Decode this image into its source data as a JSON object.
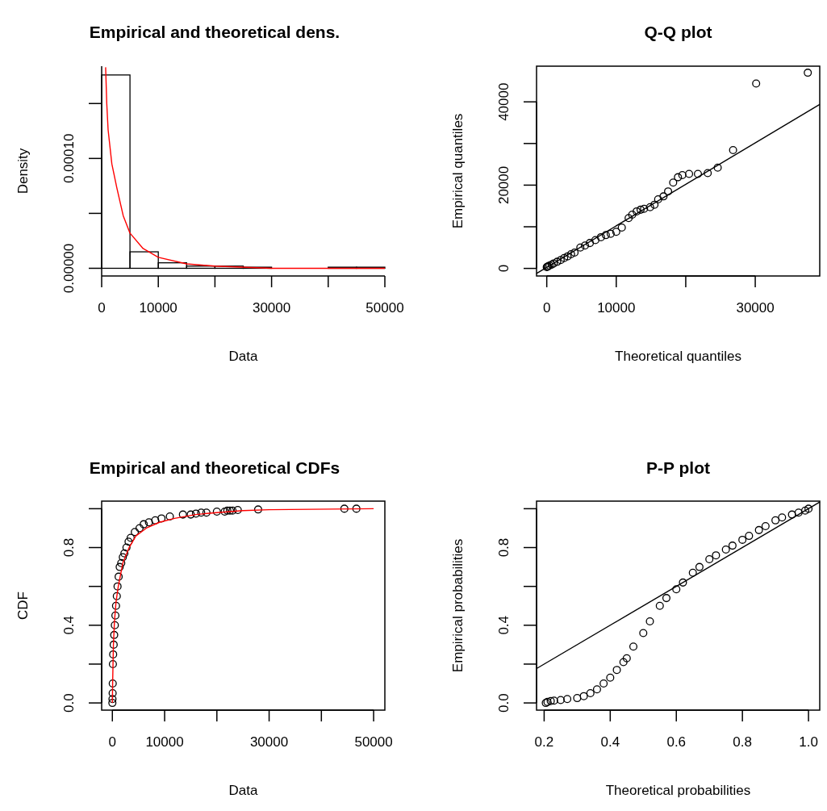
{
  "chart_data": [
    {
      "type": "histogram",
      "title": "Empirical and theoretical dens.",
      "xlabel": "Data",
      "ylabel": "Density",
      "xlim": [
        0,
        50000
      ],
      "ylim": [
        -7e-06,
        0.000184
      ],
      "xticks": [
        0,
        10000,
        {
          "value": 20000,
          "label": null
        },
        30000,
        {
          "value": 40000,
          "label": null
        },
        50000
      ],
      "yticks": [
        {
          "value": 0,
          "label": "0.00000"
        },
        {
          "value": 5e-05,
          "label": null
        },
        {
          "value": 0.0001,
          "label": "0.00010"
        },
        {
          "value": 0.00015,
          "label": null
        }
      ],
      "series": [
        {
          "type": "histogram",
          "color": "#000000",
          "bins": [
            0,
            5000,
            10000,
            15000,
            20000,
            25000,
            30000,
            35000,
            40000,
            45000,
            50000
          ],
          "values": [
            0.000176,
            1.5e-05,
            5e-06,
            2e-06,
            2e-06,
            1e-06,
            0,
            0,
            1e-06,
            1e-06
          ]
        },
        {
          "type": "line",
          "color": "#ff0000",
          "x": [
            700,
            900,
            1140,
            1800,
            2690,
            3800,
            5000,
            7310,
            10000,
            15000,
            20000,
            30000,
            50000
          ],
          "values": [
            0.000183,
            0.00015,
            0.000126,
            9.5e-05,
            7.3e-05,
            4.8e-05,
            3.2e-05,
            1.8e-05,
            1e-05,
            4e-06,
            2e-06,
            0,
            0
          ]
        }
      ]
    },
    {
      "type": "scatter",
      "title": "Q-Q plot",
      "xlabel": "Theoretical quantiles",
      "ylabel": "Empirical quantiles",
      "xlim": [
        -1470,
        39280
      ],
      "ylim": [
        -1820,
        48570
      ],
      "xticks": [
        0,
        10000,
        {
          "value": 20000,
          "label": null
        },
        30000
      ],
      "yticks": [
        0,
        {
          "value": 10000,
          "label": null
        },
        20000,
        {
          "value": 30000,
          "label": null
        },
        40000
      ],
      "series": [
        {
          "type": "scatter",
          "marker": "circle",
          "color": "#000000",
          "x": [
            0,
            100,
            200,
            400,
            700,
            1000,
            1500,
            2000,
            2500,
            3000,
            3500,
            4000,
            4830,
            5500,
            6200,
            7000,
            7800,
            8500,
            9200,
            10000,
            10800,
            11780,
            12300,
            12940,
            13500,
            14000,
            14870,
            15500,
            16030,
            16800,
            17460,
            18190,
            18880,
            19510,
            20480,
            21750,
            23160,
            24600,
            26810,
            30130,
            37560
          ],
          "values": [
            300,
            400,
            500,
            700,
            900,
            1200,
            1600,
            2000,
            2500,
            2900,
            3400,
            3800,
            5000,
            5500,
            6100,
            6800,
            7500,
            8000,
            8300,
            8800,
            9800,
            12100,
            12900,
            13700,
            14100,
            14300,
            14700,
            15300,
            16600,
            17300,
            18500,
            20600,
            21900,
            22400,
            22700,
            22700,
            22900,
            24200,
            28400,
            44400,
            47000
          ]
        },
        {
          "type": "line",
          "color": "#000000",
          "x": [
            -1470,
            39280
          ],
          "values": [
            -1200,
            39400
          ]
        }
      ]
    },
    {
      "type": "scatter",
      "title": "Empirical and theoretical CDFs",
      "xlabel": "Data",
      "ylabel": "CDF",
      "xlim": [
        -2050,
        52150
      ],
      "ylim": [
        -0.037,
        1.039
      ],
      "xticks": [
        0,
        10000,
        {
          "value": 20000,
          "label": null
        },
        30000,
        {
          "value": 40000,
          "label": null
        },
        50000
      ],
      "yticks": [
        {
          "value": 0,
          "label": "0.0"
        },
        {
          "value": 0.2,
          "label": null
        },
        0.4,
        {
          "value": 0.6,
          "label": null
        },
        0.8,
        {
          "value": 1,
          "label": null
        }
      ],
      "series": [
        {
          "type": "scatter",
          "marker": "circle",
          "color": "#000000",
          "x": [
            0,
            20,
            50,
            70,
            100,
            150,
            250,
            350,
            470,
            580,
            700,
            850,
            990,
            1200,
            1400,
            1700,
            2000,
            2300,
            2700,
            3100,
            3500,
            4300,
            5200,
            6000,
            7000,
            8200,
            9400,
            11000,
            13500,
            15000,
            16000,
            17000,
            18000,
            20000,
            21500,
            22000,
            22500,
            23000,
            24000,
            27900,
            44400,
            46700
          ],
          "values": [
            0.0,
            0.02,
            0.05,
            0.1,
            0.2,
            0.25,
            0.3,
            0.35,
            0.4,
            0.45,
            0.5,
            0.55,
            0.6,
            0.65,
            0.7,
            0.72,
            0.75,
            0.77,
            0.8,
            0.83,
            0.85,
            0.88,
            0.9,
            0.92,
            0.93,
            0.94,
            0.95,
            0.96,
            0.97,
            0.97,
            0.975,
            0.98,
            0.98,
            0.985,
            0.985,
            0.99,
            0.99,
            0.99,
            0.993,
            0.996,
            1.0,
            1.0
          ]
        },
        {
          "type": "line",
          "color": "#ff0000",
          "x": [
            0,
            50,
            200,
            400,
            700,
            1130,
            2000,
            3200,
            4500,
            6500,
            9000,
            11900,
            16000,
            20000,
            25000,
            30000,
            50000
          ],
          "values": [
            0,
            0.1,
            0.3,
            0.42,
            0.52,
            0.6,
            0.72,
            0.8,
            0.86,
            0.9,
            0.93,
            0.95,
            0.97,
            0.98,
            0.99,
            0.995,
            1.0
          ]
        }
      ]
    },
    {
      "type": "scatter",
      "title": "P-P plot",
      "xlabel": "Theoretical probabilities",
      "ylabel": "Empirical probabilities",
      "xlim": [
        0.177,
        1.034
      ],
      "ylim": [
        -0.037,
        1.039
      ],
      "xticks": [
        0.2,
        0.4,
        0.6,
        0.8,
        {
          "value": 1,
          "label": "1.0"
        }
      ],
      "yticks": [
        {
          "value": 0,
          "label": "0.0"
        },
        {
          "value": 0.2,
          "label": null
        },
        0.4,
        {
          "value": 0.6,
          "label": null
        },
        0.8,
        {
          "value": 1,
          "label": null
        }
      ],
      "series": [
        {
          "type": "scatter",
          "marker": "circle",
          "color": "#000000",
          "x": [
            0.205,
            0.21,
            0.22,
            0.23,
            0.25,
            0.27,
            0.3,
            0.32,
            0.34,
            0.36,
            0.38,
            0.4,
            0.42,
            0.44,
            0.45,
            0.47,
            0.5,
            0.52,
            0.55,
            0.57,
            0.6,
            0.62,
            0.65,
            0.67,
            0.7,
            0.72,
            0.75,
            0.77,
            0.8,
            0.82,
            0.85,
            0.87,
            0.9,
            0.92,
            0.95,
            0.97,
            0.99,
            1.0
          ],
          "values": [
            0.0,
            0.005,
            0.01,
            0.012,
            0.015,
            0.02,
            0.025,
            0.035,
            0.05,
            0.07,
            0.1,
            0.13,
            0.17,
            0.21,
            0.23,
            0.29,
            0.36,
            0.42,
            0.5,
            0.54,
            0.585,
            0.62,
            0.67,
            0.7,
            0.74,
            0.76,
            0.79,
            0.81,
            0.84,
            0.86,
            0.89,
            0.91,
            0.94,
            0.955,
            0.97,
            0.98,
            0.99,
            1.0
          ]
        },
        {
          "type": "line",
          "color": "#000000",
          "x": [
            0.177,
            1.034
          ],
          "values": [
            0.177,
            1.034
          ]
        }
      ]
    }
  ]
}
